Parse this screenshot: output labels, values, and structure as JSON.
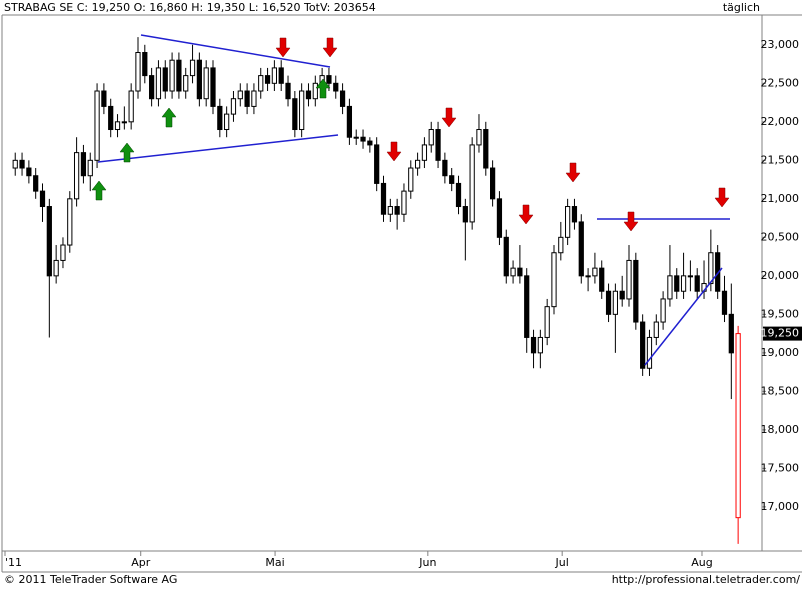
{
  "chart_data": {
    "type": "candlestick",
    "title": "STRABAG SE C: 19,250 O: 16,860 H: 19,350 L: 16,520 TotV: 203654",
    "period": "täglich",
    "footer_left": "© 2011 TeleTrader Software AG",
    "footer_right": "http://professional.teletrader.com/",
    "last_label": "19,250",
    "colors": {
      "up": "#ffffff",
      "down": "#000000",
      "last": "#ff0000",
      "outline": "#000000"
    },
    "xlim": [
      -1.5,
      109.5
    ],
    "xticks": [
      {
        "value": -1.5,
        "label": "'11"
      },
      {
        "value": 18.4,
        "label": "Apr"
      },
      {
        "value": 38.1,
        "label": "Mai"
      },
      {
        "value": 60.5,
        "label": "Jun"
      },
      {
        "value": 80.2,
        "label": "Jul"
      },
      {
        "value": 100.7,
        "label": "Aug"
      }
    ],
    "ylim": [
      16440,
      23400
    ],
    "yticks": [
      {
        "value": 17000,
        "label": "17,000"
      },
      {
        "value": 17500,
        "label": "17,500"
      },
      {
        "value": 18000,
        "label": "18,000"
      },
      {
        "value": 18500,
        "label": "18,500"
      },
      {
        "value": 19000,
        "label": "19,000"
      },
      {
        "value": 19500,
        "label": "19,500"
      },
      {
        "value": 20000,
        "label": "20,000"
      },
      {
        "value": 20500,
        "label": "20,500"
      },
      {
        "value": 21000,
        "label": "21,000"
      },
      {
        "value": 21500,
        "label": "21,500"
      },
      {
        "value": 22000,
        "label": "22,000"
      },
      {
        "value": 22500,
        "label": "22,500"
      },
      {
        "value": 23000,
        "label": "23,000"
      }
    ],
    "ohlc": [
      [
        21400,
        21600,
        21300,
        21500
      ],
      [
        21500,
        21600,
        21300,
        21400
      ],
      [
        21400,
        21500,
        21200,
        21300
      ],
      [
        21300,
        21400,
        21000,
        21100
      ],
      [
        21100,
        21200,
        20700,
        20900
      ],
      [
        20900,
        21000,
        19200,
        20000
      ],
      [
        20000,
        20400,
        19900,
        20200
      ],
      [
        20200,
        20500,
        20100,
        20400
      ],
      [
        20400,
        21100,
        20300,
        21000
      ],
      [
        21000,
        21800,
        20900,
        21600
      ],
      [
        21600,
        21700,
        21200,
        21300
      ],
      [
        21300,
        21600,
        21100,
        21500
      ],
      [
        21500,
        22500,
        21400,
        22400
      ],
      [
        22400,
        22500,
        22100,
        22200
      ],
      [
        22200,
        22300,
        21800,
        21900
      ],
      [
        21900,
        22100,
        21800,
        22000
      ],
      [
        22000,
        22200,
        21900,
        22000
      ],
      [
        22000,
        22500,
        21900,
        22400
      ],
      [
        22400,
        23100,
        22300,
        22900
      ],
      [
        22900,
        23000,
        22500,
        22600
      ],
      [
        22600,
        22700,
        22200,
        22300
      ],
      [
        22300,
        22800,
        22200,
        22700
      ],
      [
        22700,
        22800,
        22300,
        22400
      ],
      [
        22400,
        22900,
        22300,
        22800
      ],
      [
        22800,
        22900,
        22300,
        22400
      ],
      [
        22400,
        22700,
        22300,
        22600
      ],
      [
        22600,
        23000,
        22500,
        22800
      ],
      [
        22800,
        22900,
        22200,
        22300
      ],
      [
        22300,
        22800,
        22200,
        22700
      ],
      [
        22700,
        22800,
        22100,
        22200
      ],
      [
        22200,
        22300,
        21800,
        21900
      ],
      [
        21900,
        22200,
        21800,
        22100
      ],
      [
        22100,
        22400,
        22000,
        22300
      ],
      [
        22300,
        22500,
        22200,
        22400
      ],
      [
        22400,
        22500,
        22100,
        22200
      ],
      [
        22200,
        22500,
        22100,
        22400
      ],
      [
        22400,
        22700,
        22300,
        22600
      ],
      [
        22600,
        22700,
        22400,
        22500
      ],
      [
        22500,
        22800,
        22400,
        22700
      ],
      [
        22700,
        22800,
        22400,
        22500
      ],
      [
        22500,
        22600,
        22200,
        22300
      ],
      [
        22300,
        22400,
        21800,
        21900
      ],
      [
        21900,
        22500,
        21800,
        22400
      ],
      [
        22400,
        22500,
        22200,
        22300
      ],
      [
        22300,
        22600,
        22200,
        22500
      ],
      [
        22500,
        22700,
        22400,
        22600
      ],
      [
        22600,
        22700,
        22400,
        22500
      ],
      [
        22500,
        22600,
        22300,
        22400
      ],
      [
        22400,
        22500,
        22100,
        22200
      ],
      [
        22200,
        22300,
        21700,
        21800
      ],
      [
        21800,
        21900,
        21700,
        21800
      ],
      [
        21800,
        21900,
        21650,
        21750
      ],
      [
        21750,
        21800,
        21600,
        21700
      ],
      [
        21700,
        21800,
        21100,
        21200
      ],
      [
        21200,
        21300,
        20700,
        20800
      ],
      [
        20800,
        21000,
        20700,
        20900
      ],
      [
        20900,
        21000,
        20600,
        20800
      ],
      [
        20800,
        21200,
        20700,
        21100
      ],
      [
        21100,
        21500,
        21000,
        21400
      ],
      [
        21400,
        21600,
        21300,
        21500
      ],
      [
        21500,
        21800,
        21400,
        21700
      ],
      [
        21700,
        22000,
        21600,
        21900
      ],
      [
        21900,
        22000,
        21400,
        21500
      ],
      [
        21500,
        21600,
        21200,
        21300
      ],
      [
        21300,
        21400,
        21100,
        21200
      ],
      [
        21200,
        21300,
        20800,
        20900
      ],
      [
        20900,
        21000,
        20200,
        20700
      ],
      [
        20700,
        21800,
        20600,
        21700
      ],
      [
        21700,
        22100,
        21600,
        21900
      ],
      [
        21900,
        22000,
        21300,
        21400
      ],
      [
        21400,
        21500,
        20900,
        21000
      ],
      [
        21000,
        21100,
        20400,
        20500
      ],
      [
        20500,
        20600,
        19900,
        20000
      ],
      [
        20000,
        20200,
        19900,
        20100
      ],
      [
        20100,
        20400,
        19900,
        20000
      ],
      [
        20000,
        20100,
        19000,
        19200
      ],
      [
        19200,
        19300,
        18800,
        19000
      ],
      [
        19000,
        19300,
        18800,
        19200
      ],
      [
        19200,
        19700,
        19100,
        19600
      ],
      [
        19600,
        20400,
        19500,
        20300
      ],
      [
        20300,
        20700,
        20200,
        20500
      ],
      [
        20500,
        21000,
        20400,
        20900
      ],
      [
        20900,
        21000,
        20600,
        20700
      ],
      [
        20700,
        20800,
        19900,
        20000
      ],
      [
        20000,
        20100,
        19800,
        20000
      ],
      [
        20000,
        20300,
        19900,
        20100
      ],
      [
        20100,
        20200,
        19700,
        19800
      ],
      [
        19800,
        19900,
        19400,
        19500
      ],
      [
        19500,
        19900,
        19000,
        19800
      ],
      [
        19800,
        20000,
        19600,
        19700
      ],
      [
        19700,
        20400,
        19600,
        20200
      ],
      [
        20200,
        20300,
        19300,
        19400
      ],
      [
        19400,
        19500,
        18700,
        18800
      ],
      [
        18800,
        19300,
        18700,
        19200
      ],
      [
        19200,
        19500,
        19100,
        19400
      ],
      [
        19400,
        19800,
        19300,
        19700
      ],
      [
        19700,
        20400,
        19600,
        20000
      ],
      [
        20000,
        20100,
        19700,
        19800
      ],
      [
        19800,
        20300,
        19700,
        20000
      ],
      [
        20000,
        20200,
        19800,
        20000
      ],
      [
        20000,
        20100,
        19700,
        19800
      ],
      [
        19800,
        20200,
        19700,
        19900
      ],
      [
        19900,
        20600,
        19800,
        20300
      ],
      [
        20300,
        20400,
        19700,
        19800
      ],
      [
        19800,
        20000,
        19400,
        19500
      ],
      [
        19500,
        19900,
        18400,
        19000
      ],
      [
        16860,
        19350,
        16520,
        19250
      ]
    ]
  }
}
